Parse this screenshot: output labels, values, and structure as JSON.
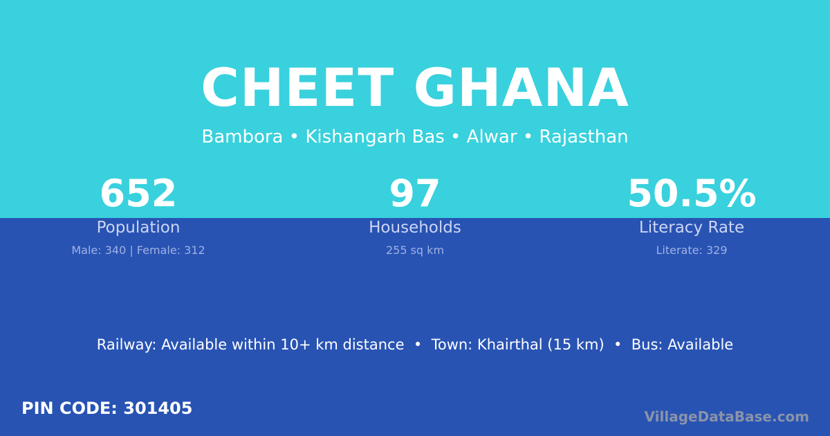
{
  "colors": {
    "top_bg": "#38d1dd",
    "bottom_bg": "#2853b3"
  },
  "title": "CHEET GHANA",
  "breadcrumb": "Bambora • Kishangarh Bas • Alwar • Rajasthan",
  "stats": [
    {
      "value": "652",
      "label": "Population",
      "detail": "Male: 340 | Female: 312"
    },
    {
      "value": "97",
      "label": "Households",
      "detail": "255 sq km"
    },
    {
      "value": "50.5%",
      "label": "Literacy Rate",
      "detail": "Literate: 329"
    }
  ],
  "connectivity": "Railway: Available within 10+ km distance  •  Town: Khairthal (15 km)  •  Bus: Available",
  "pin_code": "PIN CODE: 301405",
  "brand": "VillageDataBase.com"
}
